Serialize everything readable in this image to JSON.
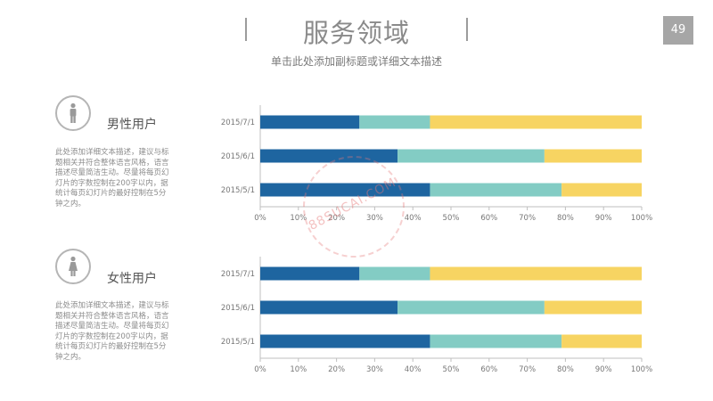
{
  "header": {
    "title": "服务领域",
    "subtitle": "单击此处添加副标题或详细文本描述",
    "page_number": "49"
  },
  "watermark": "88SUCAI.COM",
  "colors": {
    "segment1": "#1e65a0",
    "segment2": "#83ccc4",
    "segment3": "#f7d462",
    "axis": "#bfbfbf",
    "tick_text": "#777777"
  },
  "sections": [
    {
      "title": "男性用户",
      "icon": "male-user-icon",
      "description": "此处添加详细文本描述，建议与标题相关并符合整体语言风格，语言描述尽量简洁生动。尽量将每页幻灯片的字数控制在200字以内，据统计每页幻灯片的最好控制在5分钟之内。"
    },
    {
      "title": "女性用户",
      "icon": "female-user-icon",
      "description": "此处添加详细文本描述，建议与标题相关并符合整体语言风格，语言描述尽量简洁生动。尽量将每页幻灯片的字数控制在200字以内，据统计每页幻灯片的最好控制在5分钟之内。"
    }
  ],
  "chart_data": [
    {
      "type": "bar",
      "orientation": "horizontal",
      "stacked": "percent",
      "categories": [
        "2015/7/1",
        "2015/6/1",
        "2015/5/1"
      ],
      "series": [
        {
          "values": [
            26,
            36,
            44.5
          ]
        },
        {
          "values": [
            18.5,
            38.5,
            34.5
          ]
        },
        {
          "values": [
            55.5,
            25.5,
            21
          ]
        }
      ],
      "xlim": [
        0,
        100
      ],
      "x_ticks": [
        "0%",
        "10%",
        "20%",
        "30%",
        "40%",
        "50%",
        "60%",
        "70%",
        "80%",
        "90%",
        "100%"
      ],
      "grid": false,
      "legend": "none"
    },
    {
      "type": "bar",
      "orientation": "horizontal",
      "stacked": "percent",
      "categories": [
        "2015/7/1",
        "2015/6/1",
        "2015/5/1"
      ],
      "series": [
        {
          "values": [
            26,
            36,
            44.5
          ]
        },
        {
          "values": [
            18.5,
            38.5,
            34.5
          ]
        },
        {
          "values": [
            55.5,
            25.5,
            21
          ]
        }
      ],
      "xlim": [
        0,
        100
      ],
      "x_ticks": [
        "0%",
        "10%",
        "20%",
        "30%",
        "40%",
        "50%",
        "60%",
        "70%",
        "80%",
        "90%",
        "100%"
      ],
      "grid": false,
      "legend": "none"
    }
  ]
}
